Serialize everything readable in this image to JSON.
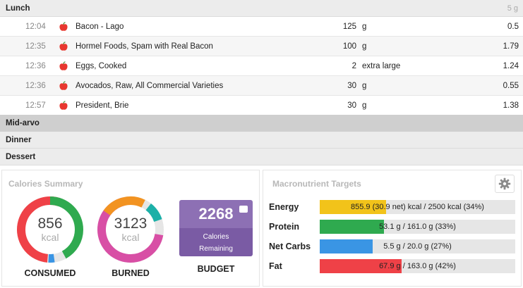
{
  "lunch": {
    "title": "Lunch",
    "total": "5 g",
    "entries": [
      {
        "time": "12:04",
        "name": "Bacon - Lago",
        "qty": "125",
        "unit": "g",
        "value": "0.5"
      },
      {
        "time": "12:35",
        "name": "Hormel Foods, Spam with Real Bacon",
        "qty": "100",
        "unit": "g",
        "value": "1.79"
      },
      {
        "time": "12:36",
        "name": "Eggs, Cooked",
        "qty": "2",
        "unit": "extra large",
        "value": "1.24"
      },
      {
        "time": "12:36",
        "name": "Avocados, Raw, All Commercial Varieties",
        "qty": "30",
        "unit": "g",
        "value": "0.55"
      },
      {
        "time": "12:57",
        "name": "President, Brie",
        "qty": "30",
        "unit": "g",
        "value": "1.38"
      }
    ]
  },
  "meals": {
    "midarvo": "Mid-arvo",
    "dinner": "Dinner",
    "dessert": "Dessert"
  },
  "calories": {
    "title": "Calories Summary",
    "consumed_value": "856",
    "consumed_unit": "kcal",
    "consumed_label": "CONSUMED",
    "burned_value": "3123",
    "burned_unit": "kcal",
    "burned_label": "BURNED",
    "budget_value": "2268",
    "budget_line1": "Calories",
    "budget_line2": "Remaining",
    "budget_label": "BUDGET"
  },
  "macros": {
    "title": "Macronutrient Targets",
    "rows": [
      {
        "label": "Energy",
        "text": "855.9 (30.9 net) kcal / 2500 kcal (34%)",
        "fraction": 0.34,
        "color": "#f2c31a"
      },
      {
        "label": "Protein",
        "text": "53.1 g / 161.0 g (33%)",
        "fraction": 0.33,
        "color": "#2faa4f"
      },
      {
        "label": "Net Carbs",
        "text": "5.5 g / 20.0 g (27%)",
        "fraction": 0.27,
        "color": "#3a95e4"
      },
      {
        "label": "Fat",
        "text": "67.9 g / 163.0 g (42%)",
        "fraction": 0.42,
        "color": "#ef4147"
      }
    ]
  },
  "colors": {
    "consumed_ring": [
      "#ef4147",
      "#2faa4f",
      "#3a95e4"
    ],
    "burned_ring": [
      "#d84fa5",
      "#f29321",
      "#1cb0a8"
    ],
    "budget": "#8d70b4",
    "apple": "#e8382f"
  },
  "icons": {
    "apple": "apple-icon",
    "gear": "gear-icon",
    "scale": "scale-icon"
  }
}
